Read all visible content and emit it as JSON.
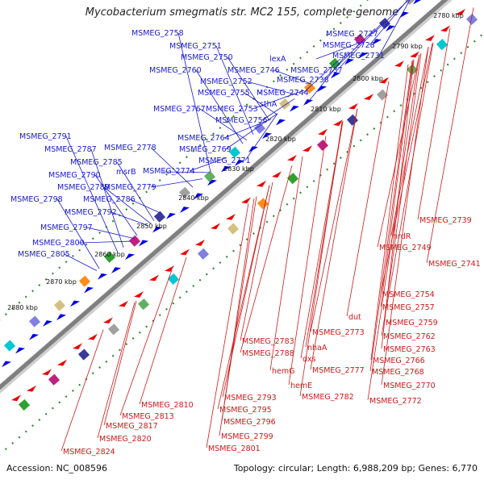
{
  "header": {
    "title": "Mycobacterium smegmatis str. MC2 155, complete genome"
  },
  "footer": {
    "accession": "Accession: NC_008596",
    "summary": "Topology: circular; Length: 6,988,209 bp; Genes: 6,770"
  },
  "colors": {
    "backbone": "#7f7f7f",
    "forward_gene": "#0000ee",
    "reverse_gene": "#ee0000",
    "forward_label": "#1a1acc",
    "reverse_label": "#cc1a1a",
    "ruler_dots": "#2e8b2e"
  },
  "ruler": {
    "labels": [
      "2780 kbp",
      "2790 kbp",
      "2800 kbp",
      "2810 kbp",
      "2820 kbp",
      "2830 kbp",
      "2840 kbp",
      "2850 kbp",
      "2860 kbp",
      "2870 kbp",
      "2880 kbp"
    ]
  },
  "forward_genes": [
    "MSMEG_2758",
    "MSMEG_2751",
    "MSMEG_2750",
    "MSMEG_2760",
    "MSMEG_2752",
    "MSMEG_2755",
    "MSMEG_2746",
    "lexA",
    "MSMEG_2767",
    "MSMEG_2753",
    "MSMEG_2756",
    "MSMEG_2744",
    "sthA",
    "MSMEG_2737",
    "MSMEG_2738",
    "MSMEG_2731",
    "MSMEG_2728",
    "MSMEG_2727",
    "MSMEG_2764",
    "MSMEG_2769",
    "MSMEG_2771",
    "MSMEG_2774",
    "MSMEG_2778",
    "msrB",
    "MSMEG_2791",
    "MSMEG_2787",
    "MSMEG_2785",
    "MSMEG_2790",
    "MSMEG_2789",
    "MSMEG_2779",
    "MSMEG_2786",
    "MSMEG_2792",
    "MSMEG_2798",
    "MSMEG_2797",
    "MSMEG_2800",
    "MSMEG_2805"
  ],
  "reverse_genes": [
    "MSMEG_2739",
    "nrdR",
    "MSMEG_2749",
    "MSMEG_2741",
    "MSMEG_2754",
    "MSMEG_2757",
    "MSMEG_2759",
    "dut",
    "MSMEG_2773",
    "MSMEG_2762",
    "MSMEG_2763",
    "MSMEG_2766",
    "MSMEG_2768",
    "MSMEG_2770",
    "MSMEG_2772",
    "MSMEG_2783",
    "nhaA",
    "dxs",
    "MSMEG_2777",
    "MSMEG_2788",
    "hemG",
    "hemE",
    "MSMEG_2782",
    "MSMEG_2793",
    "MSMEG_2795",
    "MSMEG_2796",
    "MSMEG_2799",
    "MSMEG_2801",
    "MSMEG_2810",
    "MSMEG_2813",
    "MSMEG_2817",
    "MSMEG_2820",
    "MSMEG_2824"
  ]
}
